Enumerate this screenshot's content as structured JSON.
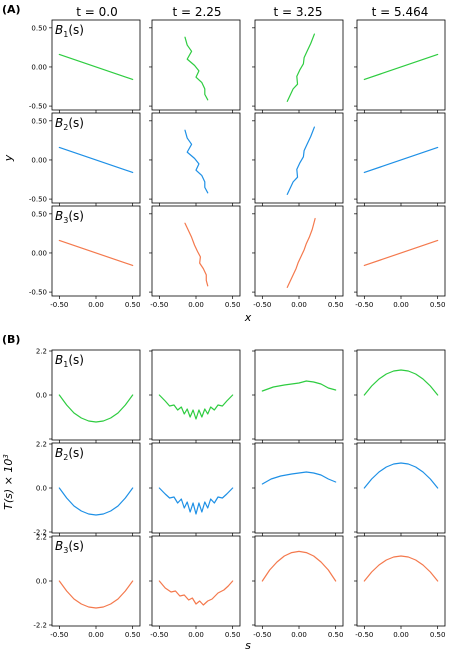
{
  "panel_labels": {
    "a": "(A)",
    "b": "(B)"
  },
  "column_titles": [
    "t  = 0.0",
    "t  = 2.25",
    "t  = 3.25",
    "t  = 5.464"
  ],
  "series": [
    {
      "name": "B",
      "sub": "1",
      "suffix": "(s)",
      "color": "#2ecc40"
    },
    {
      "name": "B",
      "sub": "2",
      "suffix": "(s)",
      "color": "#1e90e6"
    },
    {
      "name": "B",
      "sub": "3",
      "suffix": "(s)",
      "color": "#f4794d"
    }
  ],
  "axis_labels": {
    "a_x": "x",
    "a_y": "y",
    "b_x": "s",
    "b_y_main": "T(s) × 10",
    "b_y_exp": "3"
  },
  "chart_data": [
    {
      "type": "line",
      "name": "panel-A",
      "xlabel": "x",
      "ylabel": "y",
      "xlim": [
        -0.6,
        0.6
      ],
      "ylim": [
        -0.55,
        0.6
      ],
      "xticks": [
        "-0.50",
        "0.00",
        "0.50"
      ],
      "yticks": [
        "-0.50",
        "0.00",
        "0.50"
      ],
      "xtick_values": [
        -0.5,
        0.0,
        0.5
      ],
      "ytick_values": [
        -0.5,
        0.0,
        0.5
      ],
      "x_tick_labels_on_row": 2,
      "y_tick_labels_on_col": 0,
      "rows": [
        [
          [
            [
              -0.5,
              0.16
            ],
            [
              0.5,
              -0.16
            ]
          ],
          [
            [
              -0.15,
              0.38
            ],
            [
              -0.12,
              0.28
            ],
            [
              -0.06,
              0.2
            ],
            [
              -0.12,
              0.1
            ],
            [
              -0.02,
              0.02
            ],
            [
              0.04,
              -0.05
            ],
            [
              0.0,
              -0.13
            ],
            [
              0.08,
              -0.2
            ],
            [
              0.12,
              -0.28
            ],
            [
              0.12,
              -0.35
            ],
            [
              0.16,
              -0.42
            ]
          ],
          [
            [
              -0.16,
              -0.44
            ],
            [
              -0.12,
              -0.36
            ],
            [
              -0.08,
              -0.28
            ],
            [
              -0.02,
              -0.22
            ],
            [
              -0.03,
              -0.12
            ],
            [
              0.01,
              -0.04
            ],
            [
              0.06,
              0.04
            ],
            [
              0.07,
              0.12
            ],
            [
              0.11,
              0.2
            ],
            [
              0.16,
              0.3
            ],
            [
              0.21,
              0.42
            ]
          ],
          [
            [
              -0.5,
              -0.16
            ],
            [
              0.5,
              0.16
            ]
          ]
        ],
        [
          [
            [
              -0.5,
              0.16
            ],
            [
              0.5,
              -0.16
            ]
          ],
          [
            [
              -0.15,
              0.38
            ],
            [
              -0.12,
              0.28
            ],
            [
              -0.06,
              0.2
            ],
            [
              -0.12,
              0.1
            ],
            [
              -0.02,
              0.02
            ],
            [
              0.04,
              -0.05
            ],
            [
              0.0,
              -0.13
            ],
            [
              0.08,
              -0.2
            ],
            [
              0.12,
              -0.28
            ],
            [
              0.12,
              -0.35
            ],
            [
              0.16,
              -0.42
            ]
          ],
          [
            [
              -0.16,
              -0.44
            ],
            [
              -0.12,
              -0.36
            ],
            [
              -0.08,
              -0.28
            ],
            [
              -0.02,
              -0.22
            ],
            [
              -0.03,
              -0.12
            ],
            [
              0.01,
              -0.04
            ],
            [
              0.06,
              0.04
            ],
            [
              0.07,
              0.12
            ],
            [
              0.11,
              0.2
            ],
            [
              0.16,
              0.3
            ],
            [
              0.21,
              0.42
            ]
          ],
          [
            [
              -0.5,
              -0.16
            ],
            [
              0.5,
              0.16
            ]
          ]
        ],
        [
          [
            [
              -0.5,
              0.16
            ],
            [
              0.5,
              -0.16
            ]
          ],
          [
            [
              -0.15,
              0.38
            ],
            [
              -0.1,
              0.28
            ],
            [
              -0.06,
              0.2
            ],
            [
              -0.02,
              0.1
            ],
            [
              0.02,
              0.02
            ],
            [
              0.06,
              -0.05
            ],
            [
              0.05,
              -0.13
            ],
            [
              0.1,
              -0.2
            ],
            [
              0.14,
              -0.28
            ],
            [
              0.14,
              -0.35
            ],
            [
              0.16,
              -0.42
            ]
          ],
          [
            [
              -0.16,
              -0.44
            ],
            [
              -0.12,
              -0.36
            ],
            [
              -0.08,
              -0.28
            ],
            [
              -0.04,
              -0.2
            ],
            [
              -0.01,
              -0.12
            ],
            [
              0.03,
              -0.04
            ],
            [
              0.07,
              0.04
            ],
            [
              0.1,
              0.12
            ],
            [
              0.14,
              0.2
            ],
            [
              0.18,
              0.3
            ],
            [
              0.22,
              0.44
            ]
          ],
          [
            [
              -0.5,
              -0.16
            ],
            [
              0.5,
              0.16
            ]
          ]
        ]
      ]
    },
    {
      "type": "line",
      "name": "panel-B",
      "xlabel": "s",
      "ylabel": "T(s) × 10^3",
      "xlim": [
        -0.6,
        0.6
      ],
      "ylim": [
        -2.25,
        2.25
      ],
      "xticks": [
        "-0.50",
        "0.00",
        "0.50"
      ],
      "yticks": [
        "-2.2",
        "0.0",
        "2.2"
      ],
      "xtick_values": [
        -0.5,
        0.0,
        0.5
      ],
      "ytick_values": [
        -2.2,
        0.0,
        2.2
      ],
      "y_tick_labels_per_row": [
        [
          "0.0",
          "2.2"
        ],
        [
          "-2.2",
          "0.0",
          "2.2"
        ],
        [
          "-2.2",
          "0.0",
          "2.2"
        ]
      ],
      "x_tick_labels_on_row": 2,
      "y_tick_labels_on_col": 0,
      "rows": [
        [
          [
            [
              -0.5,
              0.0
            ],
            [
              -0.4,
              -0.5
            ],
            [
              -0.3,
              -0.9
            ],
            [
              -0.2,
              -1.15
            ],
            [
              -0.1,
              -1.3
            ],
            [
              0.0,
              -1.35
            ],
            [
              0.1,
              -1.3
            ],
            [
              0.2,
              -1.15
            ],
            [
              0.3,
              -0.9
            ],
            [
              0.4,
              -0.5
            ],
            [
              0.5,
              0.0
            ]
          ],
          [
            [
              -0.5,
              0.0
            ],
            [
              -0.42,
              -0.3
            ],
            [
              -0.36,
              -0.55
            ],
            [
              -0.3,
              -0.5
            ],
            [
              -0.25,
              -0.75
            ],
            [
              -0.2,
              -0.6
            ],
            [
              -0.16,
              -0.95
            ],
            [
              -0.12,
              -0.7
            ],
            [
              -0.08,
              -1.1
            ],
            [
              -0.04,
              -0.75
            ],
            [
              0.0,
              -1.2
            ],
            [
              0.04,
              -0.75
            ],
            [
              0.08,
              -1.1
            ],
            [
              0.12,
              -0.7
            ],
            [
              0.16,
              -0.95
            ],
            [
              0.2,
              -0.6
            ],
            [
              0.25,
              -0.75
            ],
            [
              0.3,
              -0.5
            ],
            [
              0.36,
              -0.55
            ],
            [
              0.42,
              -0.3
            ],
            [
              0.5,
              0.0
            ]
          ],
          [
            [
              -0.5,
              0.2
            ],
            [
              -0.35,
              0.4
            ],
            [
              -0.2,
              0.5
            ],
            [
              -0.1,
              0.55
            ],
            [
              0.0,
              0.6
            ],
            [
              0.1,
              0.7
            ],
            [
              0.2,
              0.65
            ],
            [
              0.3,
              0.55
            ],
            [
              0.4,
              0.35
            ],
            [
              0.5,
              0.25
            ]
          ],
          [
            [
              -0.5,
              0.0
            ],
            [
              -0.4,
              0.45
            ],
            [
              -0.3,
              0.8
            ],
            [
              -0.2,
              1.05
            ],
            [
              -0.1,
              1.2
            ],
            [
              0.0,
              1.25
            ],
            [
              0.1,
              1.2
            ],
            [
              0.2,
              1.05
            ],
            [
              0.3,
              0.8
            ],
            [
              0.4,
              0.45
            ],
            [
              0.5,
              0.0
            ]
          ]
        ],
        [
          [
            [
              -0.5,
              0.0
            ],
            [
              -0.4,
              -0.5
            ],
            [
              -0.3,
              -0.9
            ],
            [
              -0.2,
              -1.15
            ],
            [
              -0.1,
              -1.3
            ],
            [
              0.0,
              -1.35
            ],
            [
              0.1,
              -1.3
            ],
            [
              0.2,
              -1.15
            ],
            [
              0.3,
              -0.9
            ],
            [
              0.4,
              -0.5
            ],
            [
              0.5,
              0.0
            ]
          ],
          [
            [
              -0.5,
              0.0
            ],
            [
              -0.42,
              -0.3
            ],
            [
              -0.36,
              -0.5
            ],
            [
              -0.3,
              -0.45
            ],
            [
              -0.25,
              -0.75
            ],
            [
              -0.2,
              -0.55
            ],
            [
              -0.16,
              -1.0
            ],
            [
              -0.12,
              -0.7
            ],
            [
              -0.08,
              -1.2
            ],
            [
              -0.04,
              -0.75
            ],
            [
              0.0,
              -1.3
            ],
            [
              0.04,
              -0.75
            ],
            [
              0.08,
              -1.2
            ],
            [
              0.12,
              -0.7
            ],
            [
              0.16,
              -1.0
            ],
            [
              0.2,
              -0.55
            ],
            [
              0.25,
              -0.75
            ],
            [
              0.3,
              -0.45
            ],
            [
              0.36,
              -0.5
            ],
            [
              0.42,
              -0.3
            ],
            [
              0.5,
              0.0
            ]
          ],
          [
            [
              -0.5,
              0.2
            ],
            [
              -0.38,
              0.45
            ],
            [
              -0.25,
              0.6
            ],
            [
              -0.1,
              0.7
            ],
            [
              0.0,
              0.75
            ],
            [
              0.1,
              0.8
            ],
            [
              0.2,
              0.75
            ],
            [
              0.3,
              0.65
            ],
            [
              0.4,
              0.45
            ],
            [
              0.5,
              0.3
            ]
          ],
          [
            [
              -0.5,
              0.0
            ],
            [
              -0.4,
              0.45
            ],
            [
              -0.3,
              0.8
            ],
            [
              -0.2,
              1.05
            ],
            [
              -0.1,
              1.2
            ],
            [
              0.0,
              1.25
            ],
            [
              0.1,
              1.2
            ],
            [
              0.2,
              1.05
            ],
            [
              0.3,
              0.8
            ],
            [
              0.4,
              0.45
            ],
            [
              0.5,
              0.0
            ]
          ]
        ],
        [
          [
            [
              -0.5,
              0.0
            ],
            [
              -0.4,
              -0.5
            ],
            [
              -0.3,
              -0.9
            ],
            [
              -0.2,
              -1.15
            ],
            [
              -0.1,
              -1.3
            ],
            [
              0.0,
              -1.35
            ],
            [
              0.1,
              -1.3
            ],
            [
              0.2,
              -1.15
            ],
            [
              0.3,
              -0.9
            ],
            [
              0.4,
              -0.5
            ],
            [
              0.5,
              0.0
            ]
          ],
          [
            [
              -0.5,
              0.0
            ],
            [
              -0.42,
              -0.35
            ],
            [
              -0.34,
              -0.55
            ],
            [
              -0.28,
              -0.5
            ],
            [
              -0.22,
              -0.75
            ],
            [
              -0.16,
              -0.7
            ],
            [
              -0.1,
              -0.95
            ],
            [
              -0.05,
              -0.85
            ],
            [
              0.0,
              -1.15
            ],
            [
              0.05,
              -1.0
            ],
            [
              0.1,
              -1.2
            ],
            [
              0.16,
              -1.0
            ],
            [
              0.22,
              -0.9
            ],
            [
              0.3,
              -0.6
            ],
            [
              0.38,
              -0.45
            ],
            [
              0.44,
              -0.25
            ],
            [
              0.5,
              0.0
            ]
          ],
          [
            [
              -0.5,
              0.0
            ],
            [
              -0.4,
              0.55
            ],
            [
              -0.3,
              0.95
            ],
            [
              -0.2,
              1.25
            ],
            [
              -0.1,
              1.42
            ],
            [
              0.0,
              1.48
            ],
            [
              0.1,
              1.42
            ],
            [
              0.2,
              1.25
            ],
            [
              0.3,
              0.95
            ],
            [
              0.4,
              0.55
            ],
            [
              0.5,
              0.0
            ]
          ],
          [
            [
              -0.5,
              0.0
            ],
            [
              -0.4,
              0.45
            ],
            [
              -0.3,
              0.8
            ],
            [
              -0.2,
              1.05
            ],
            [
              -0.1,
              1.2
            ],
            [
              0.0,
              1.25
            ],
            [
              0.1,
              1.2
            ],
            [
              0.2,
              1.05
            ],
            [
              0.3,
              0.8
            ],
            [
              0.4,
              0.45
            ],
            [
              0.5,
              0.0
            ]
          ]
        ]
      ]
    }
  ]
}
